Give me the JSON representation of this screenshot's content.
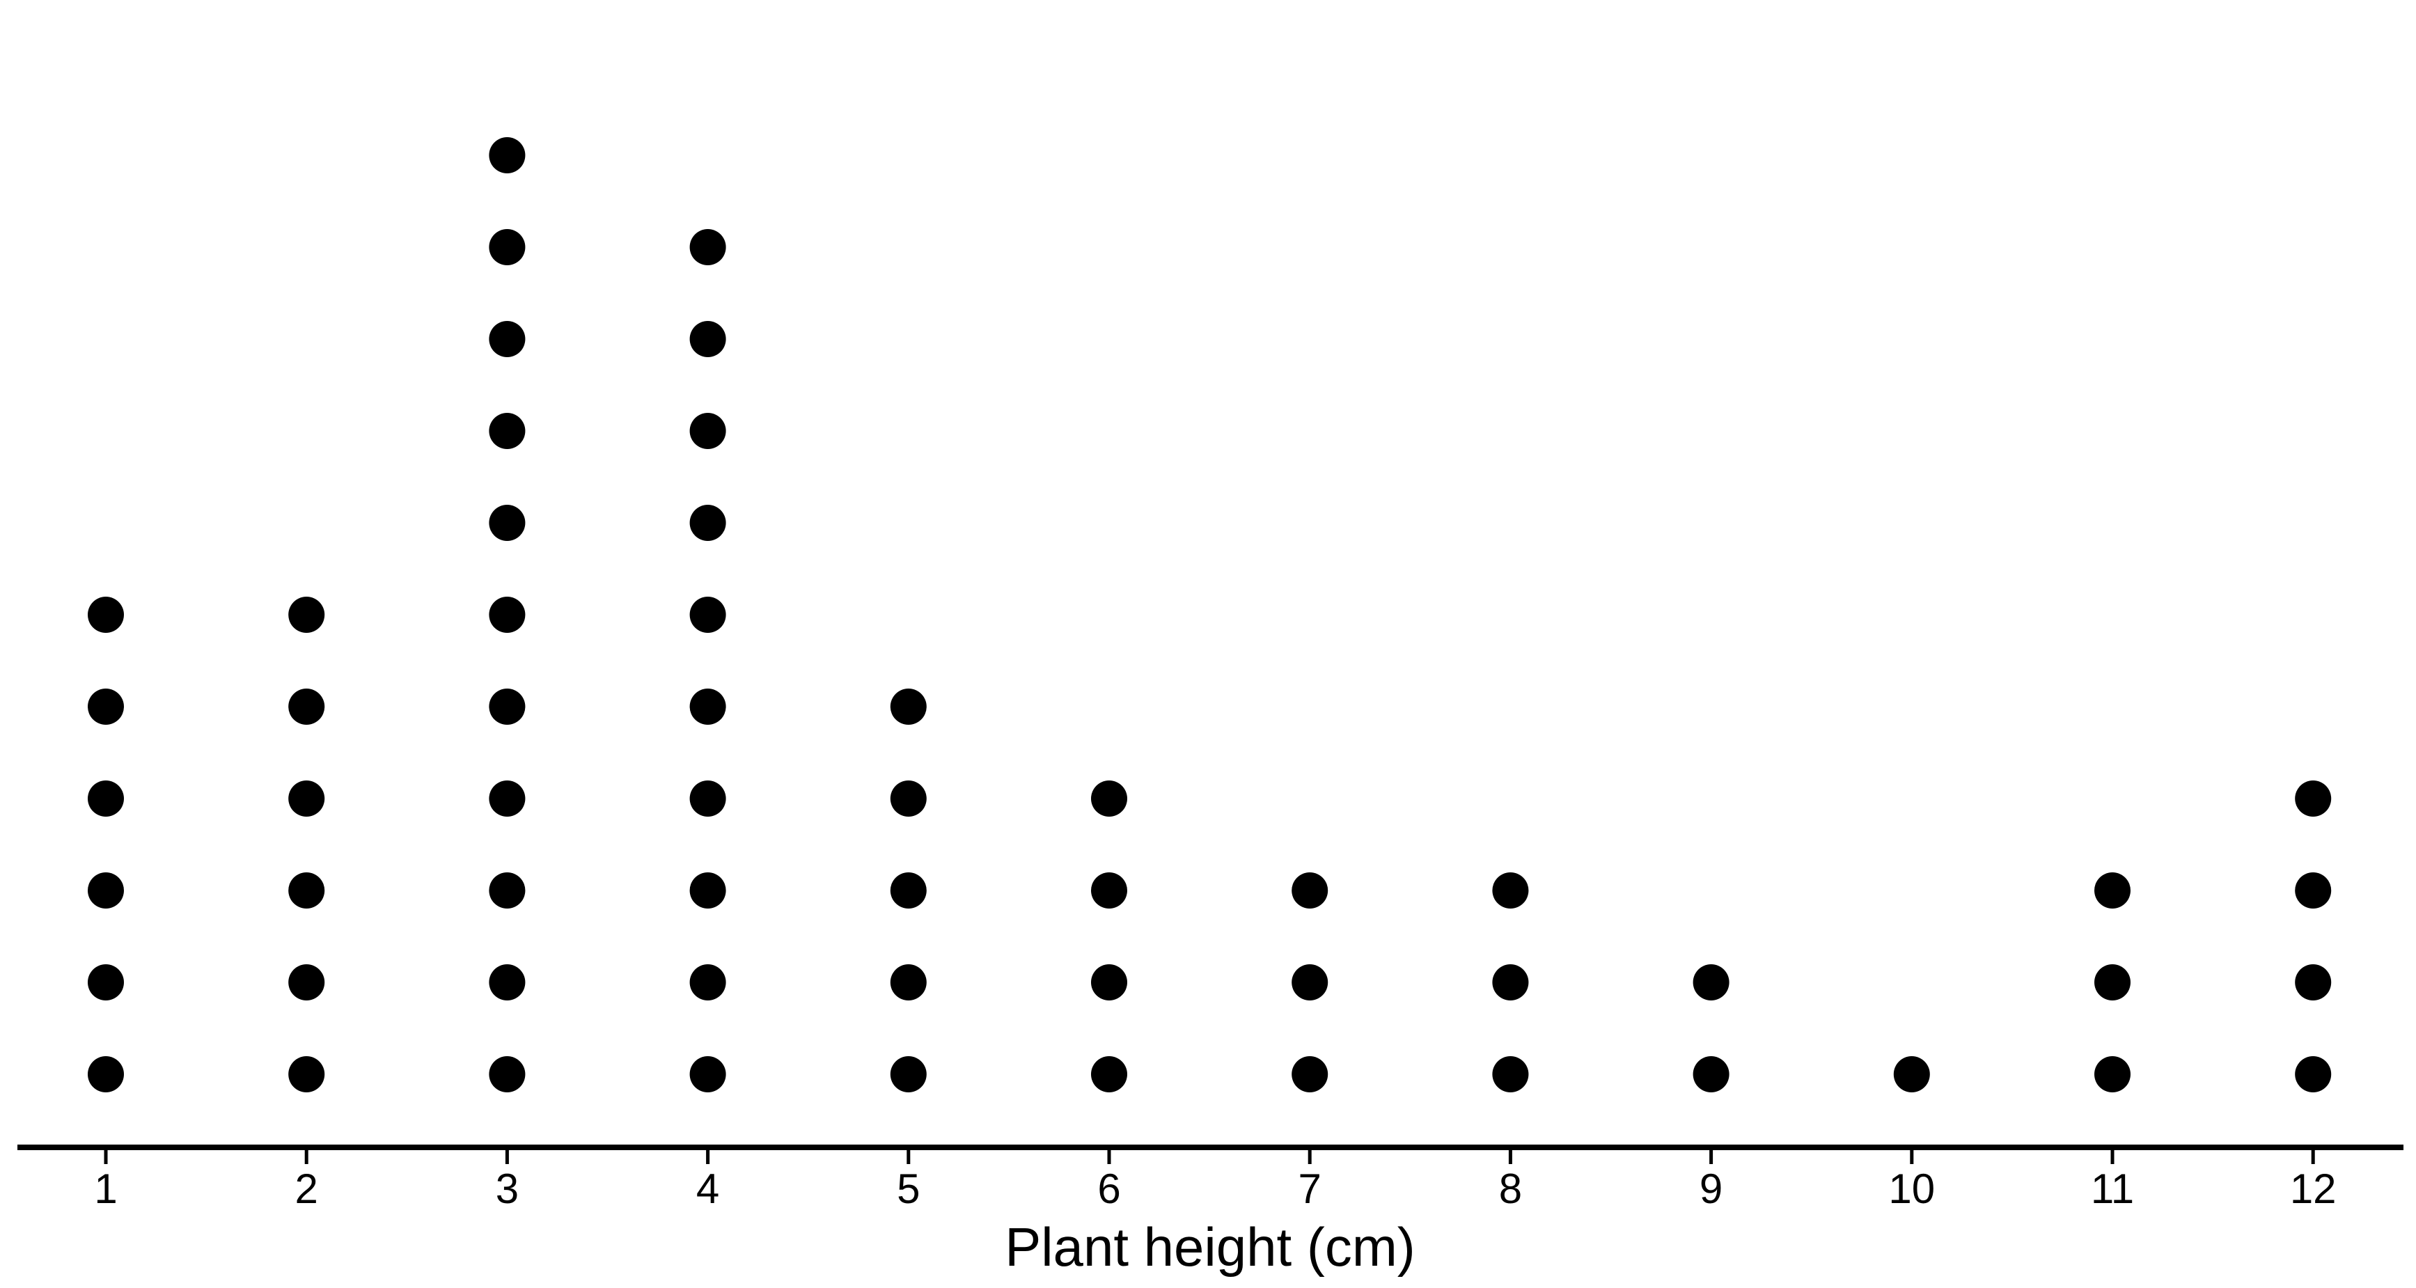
{
  "chart_data": {
    "type": "dot_plot",
    "xlabel": "Plant height (cm)",
    "categories": [
      "1",
      "2",
      "3",
      "4",
      "5",
      "6",
      "7",
      "8",
      "9",
      "10",
      "11",
      "12"
    ],
    "x": [
      1,
      2,
      3,
      4,
      5,
      6,
      7,
      8,
      9,
      10,
      11,
      12
    ],
    "counts": [
      6,
      6,
      11,
      10,
      5,
      4,
      3,
      3,
      2,
      1,
      3,
      4
    ],
    "xlim": [
      1,
      12
    ],
    "grid": false,
    "legend": "none",
    "colors": {
      "dot": "#000000",
      "axis": "#000000",
      "background": "#ffffff"
    }
  }
}
